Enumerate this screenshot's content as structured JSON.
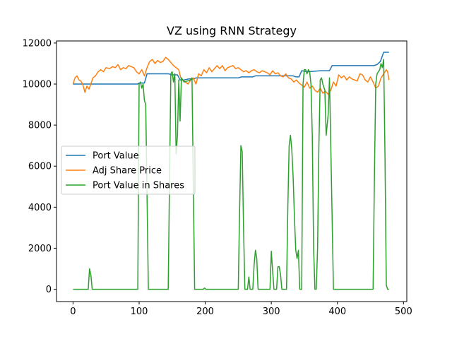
{
  "chart_data": {
    "type": "line",
    "title": "VZ using RNN Strategy",
    "xlabel": "",
    "ylabel": "",
    "xlim": [
      -25,
      505
    ],
    "ylim": [
      -600,
      12100
    ],
    "x_ticks": [
      0,
      100,
      200,
      300,
      400,
      500
    ],
    "y_ticks": [
      0,
      2000,
      4000,
      6000,
      8000,
      10000,
      12000
    ],
    "grid": false,
    "legend_position": "center-left",
    "series": [
      {
        "name": "Port Value",
        "color": "#1f77b4",
        "points": [
          [
            0,
            10000
          ],
          [
            98,
            10000
          ],
          [
            100,
            10050
          ],
          [
            108,
            10050
          ],
          [
            112,
            10500
          ],
          [
            145,
            10500
          ],
          [
            148,
            10450
          ],
          [
            158,
            10450
          ],
          [
            162,
            10200
          ],
          [
            168,
            10200
          ],
          [
            175,
            10250
          ],
          [
            182,
            10250
          ],
          [
            186,
            10300
          ],
          [
            250,
            10300
          ],
          [
            255,
            10350
          ],
          [
            272,
            10350
          ],
          [
            276,
            10400
          ],
          [
            333,
            10400
          ],
          [
            337,
            10350
          ],
          [
            342,
            10350
          ],
          [
            346,
            10650
          ],
          [
            355,
            10600
          ],
          [
            375,
            10650
          ],
          [
            380,
            10650
          ],
          [
            382,
            10650
          ],
          [
            388,
            10650
          ],
          [
            392,
            10900
          ],
          [
            455,
            10900
          ],
          [
            460,
            10950
          ],
          [
            465,
            11100
          ],
          [
            470,
            11550
          ],
          [
            478,
            11550
          ]
        ]
      },
      {
        "name": "Adj Share Price",
        "color": "#ff7f0e",
        "points": [
          [
            0,
            10000
          ],
          [
            3,
            10300
          ],
          [
            6,
            10400
          ],
          [
            9,
            10200
          ],
          [
            12,
            10150
          ],
          [
            15,
            9950
          ],
          [
            18,
            9600
          ],
          [
            21,
            9900
          ],
          [
            24,
            9750
          ],
          [
            27,
            10000
          ],
          [
            30,
            10300
          ],
          [
            34,
            10400
          ],
          [
            38,
            10600
          ],
          [
            42,
            10700
          ],
          [
            46,
            10600
          ],
          [
            50,
            10800
          ],
          [
            55,
            10750
          ],
          [
            60,
            10850
          ],
          [
            64,
            10800
          ],
          [
            68,
            10950
          ],
          [
            72,
            10700
          ],
          [
            76,
            10800
          ],
          [
            80,
            10750
          ],
          [
            84,
            10900
          ],
          [
            88,
            10850
          ],
          [
            92,
            10800
          ],
          [
            96,
            10600
          ],
          [
            100,
            10500
          ],
          [
            104,
            10700
          ],
          [
            108,
            10400
          ],
          [
            112,
            10800
          ],
          [
            116,
            11100
          ],
          [
            120,
            11200
          ],
          [
            124,
            11000
          ],
          [
            128,
            11150
          ],
          [
            132,
            11050
          ],
          [
            136,
            11100
          ],
          [
            140,
            11300
          ],
          [
            144,
            11200
          ],
          [
            148,
            11050
          ],
          [
            152,
            10900
          ],
          [
            156,
            10800
          ],
          [
            160,
            10700
          ],
          [
            163,
            10300
          ],
          [
            166,
            10200
          ],
          [
            170,
            10100
          ],
          [
            174,
            10000
          ],
          [
            178,
            10200
          ],
          [
            182,
            10300
          ],
          [
            186,
            10000
          ],
          [
            190,
            10500
          ],
          [
            194,
            10400
          ],
          [
            198,
            10700
          ],
          [
            202,
            10550
          ],
          [
            206,
            10800
          ],
          [
            210,
            10600
          ],
          [
            214,
            10750
          ],
          [
            218,
            10900
          ],
          [
            222,
            10750
          ],
          [
            226,
            10900
          ],
          [
            230,
            10650
          ],
          [
            234,
            10800
          ],
          [
            238,
            10850
          ],
          [
            242,
            10900
          ],
          [
            246,
            10750
          ],
          [
            250,
            10800
          ],
          [
            254,
            10700
          ],
          [
            258,
            10600
          ],
          [
            262,
            10650
          ],
          [
            266,
            10550
          ],
          [
            270,
            10650
          ],
          [
            274,
            10700
          ],
          [
            278,
            10600
          ],
          [
            282,
            10550
          ],
          [
            286,
            10650
          ],
          [
            290,
            10600
          ],
          [
            294,
            10550
          ],
          [
            298,
            10450
          ],
          [
            302,
            10650
          ],
          [
            306,
            10500
          ],
          [
            310,
            10550
          ],
          [
            314,
            10400
          ],
          [
            318,
            10350
          ],
          [
            322,
            10500
          ],
          [
            326,
            10300
          ],
          [
            330,
            10250
          ],
          [
            334,
            10100
          ],
          [
            338,
            10200
          ],
          [
            342,
            10050
          ],
          [
            346,
            9950
          ],
          [
            350,
            9850
          ],
          [
            354,
            10100
          ],
          [
            358,
            9800
          ],
          [
            362,
            9900
          ],
          [
            366,
            9700
          ],
          [
            370,
            9600
          ],
          [
            374,
            9800
          ],
          [
            378,
            9550
          ],
          [
            382,
            9650
          ],
          [
            386,
            9500
          ],
          [
            390,
            9700
          ],
          [
            394,
            10100
          ],
          [
            398,
            9900
          ],
          [
            402,
            10450
          ],
          [
            406,
            10300
          ],
          [
            410,
            10400
          ],
          [
            414,
            10200
          ],
          [
            418,
            10350
          ],
          [
            422,
            10250
          ],
          [
            426,
            10200
          ],
          [
            430,
            10150
          ],
          [
            434,
            10500
          ],
          [
            438,
            10450
          ],
          [
            442,
            10200
          ],
          [
            446,
            10100
          ],
          [
            450,
            10350
          ],
          [
            454,
            10100
          ],
          [
            458,
            9800
          ],
          [
            462,
            9900
          ],
          [
            466,
            10300
          ],
          [
            470,
            10500
          ],
          [
            474,
            10700
          ],
          [
            476,
            10600
          ],
          [
            478,
            10200
          ]
        ]
      },
      {
        "name": "Port Value in Shares",
        "color": "#2ca02c",
        "points": [
          [
            0,
            0
          ],
          [
            23,
            0
          ],
          [
            25,
            1000
          ],
          [
            27,
            700
          ],
          [
            29,
            0
          ],
          [
            98,
            0
          ],
          [
            100,
            10000
          ],
          [
            102,
            10100
          ],
          [
            104,
            9800
          ],
          [
            106,
            10000
          ],
          [
            108,
            9200
          ],
          [
            110,
            9000
          ],
          [
            114,
            0
          ],
          [
            144,
            0
          ],
          [
            148,
            10500
          ],
          [
            150,
            10600
          ],
          [
            152,
            10100
          ],
          [
            154,
            10500
          ],
          [
            156,
            6600
          ],
          [
            158,
            7500
          ],
          [
            160,
            10200
          ],
          [
            162,
            8200
          ],
          [
            164,
            10300
          ],
          [
            166,
            10200
          ],
          [
            168,
            10100
          ],
          [
            178,
            10200
          ],
          [
            180,
            10300
          ],
          [
            184,
            0
          ],
          [
            197,
            0
          ],
          [
            199,
            60
          ],
          [
            201,
            0
          ],
          [
            250,
            0
          ],
          [
            252,
            3800
          ],
          [
            254,
            7000
          ],
          [
            256,
            6700
          ],
          [
            258,
            3000
          ],
          [
            260,
            0
          ],
          [
            264,
            0
          ],
          [
            266,
            600
          ],
          [
            268,
            0
          ],
          [
            272,
            0
          ],
          [
            274,
            1200
          ],
          [
            276,
            1900
          ],
          [
            278,
            1500
          ],
          [
            280,
            0
          ],
          [
            298,
            0
          ],
          [
            300,
            1850
          ],
          [
            302,
            900
          ],
          [
            304,
            0
          ],
          [
            308,
            0
          ],
          [
            310,
            1100
          ],
          [
            312,
            1100
          ],
          [
            314,
            700
          ],
          [
            316,
            0
          ],
          [
            323,
            0
          ],
          [
            325,
            4000
          ],
          [
            327,
            7000
          ],
          [
            329,
            7500
          ],
          [
            331,
            6800
          ],
          [
            333,
            5500
          ],
          [
            335,
            3500
          ],
          [
            337,
            1900
          ],
          [
            339,
            1500
          ],
          [
            341,
            1900
          ],
          [
            343,
            0
          ],
          [
            346,
            0
          ],
          [
            348,
            10000
          ],
          [
            350,
            10700
          ],
          [
            352,
            10700
          ],
          [
            354,
            10500
          ],
          [
            356,
            10700
          ],
          [
            358,
            10600
          ],
          [
            360,
            10000
          ],
          [
            362,
            7500
          ],
          [
            364,
            2000
          ],
          [
            366,
            0
          ],
          [
            368,
            0
          ],
          [
            370,
            2000
          ],
          [
            372,
            7000
          ],
          [
            374,
            10200
          ],
          [
            376,
            10300
          ],
          [
            378,
            10000
          ],
          [
            381,
            9700
          ],
          [
            383,
            7500
          ],
          [
            386,
            8500
          ],
          [
            388,
            10300
          ],
          [
            390,
            7000
          ],
          [
            394,
            0
          ],
          [
            454,
            0
          ],
          [
            456,
            5500
          ],
          [
            458,
            10000
          ],
          [
            460,
            10500
          ],
          [
            462,
            10600
          ],
          [
            464,
            10700
          ],
          [
            466,
            11000
          ],
          [
            468,
            10800
          ],
          [
            470,
            11200
          ],
          [
            472,
            6500
          ],
          [
            474,
            200
          ],
          [
            476,
            0
          ],
          [
            478,
            0
          ]
        ]
      }
    ]
  }
}
